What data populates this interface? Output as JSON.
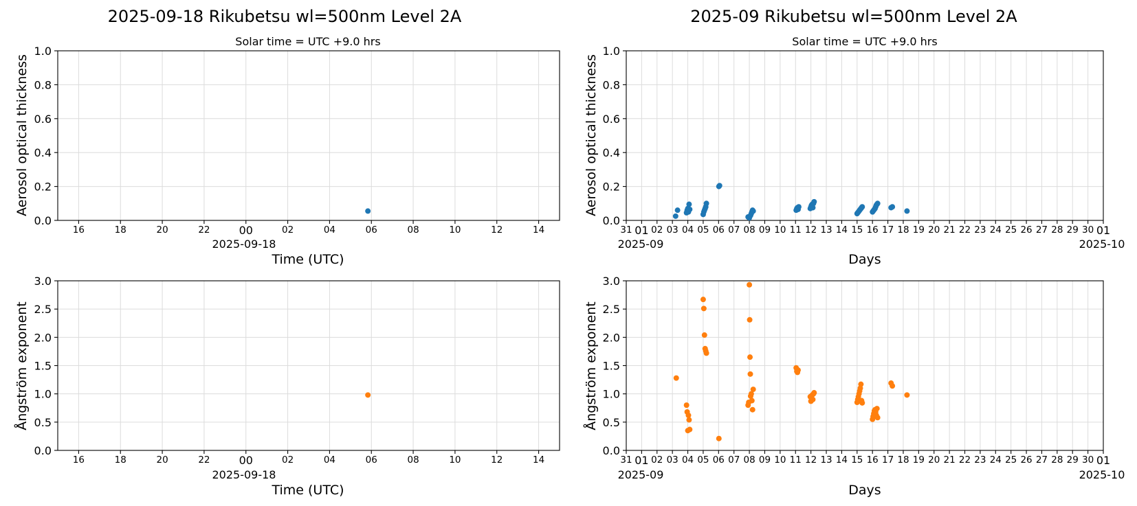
{
  "colors": {
    "aot": "#1f77b4",
    "angstrom": "#ff7f0e",
    "grid": "#dcdcdc"
  },
  "panels": {
    "daily_title": "2025-09-18  Rikubetsu  wl=500nm  Level 2A",
    "monthly_title": "2025-09  Rikubetsu  wl=500nm  Level 2A",
    "solar_time_note": "Solar time = UTC +9.0 hrs",
    "aot_ylabel": "Aerosol optical thickness",
    "angstrom_ylabel": "Ångström exponent",
    "daily_xlabel": "Time (UTC)",
    "monthly_xlabel": "Days",
    "daily_date_label": "2025-09-18",
    "monthly_start_label": "2025-09",
    "monthly_end_label": "2025-10"
  },
  "chart_data": [
    {
      "type": "scatter",
      "id": "daily-aot",
      "title": "Solar time = UTC +9.0 hrs",
      "xlabel": "Time (UTC)",
      "ylabel": "Aerosol optical thickness",
      "xlim": [
        "2025-09-17T15:00",
        "2025-09-18T15:00"
      ],
      "ylim": [
        0,
        1.0
      ],
      "yticks": [
        "0.0",
        "0.2",
        "0.4",
        "0.6",
        "0.8",
        "1.0"
      ],
      "xticks": [
        "16",
        "18",
        "20",
        "22",
        "00",
        "02",
        "04",
        "06",
        "08",
        "10",
        "12",
        "14"
      ],
      "grid": true,
      "series": [
        {
          "color": "#1f77b4",
          "points": [
            [
              "2025-09-18T05:50",
              0.055
            ]
          ]
        }
      ]
    },
    {
      "type": "scatter",
      "id": "monthly-aot",
      "title": "Solar time = UTC +9.0 hrs",
      "xlabel": "Days",
      "ylabel": "Aerosol optical thickness",
      "xlim": [
        "2025-08-31",
        "2025-10-01"
      ],
      "ylim": [
        0,
        1.0
      ],
      "yticks": [
        "0.0",
        "0.2",
        "0.4",
        "0.6",
        "0.8",
        "1.0"
      ],
      "xticks": [
        "31",
        "01",
        "02",
        "03",
        "04",
        "05",
        "06",
        "07",
        "08",
        "09",
        "10",
        "11",
        "12",
        "13",
        "14",
        "15",
        "16",
        "17",
        "18",
        "19",
        "20",
        "21",
        "22",
        "23",
        "24",
        "25",
        "26",
        "27",
        "28",
        "29",
        "30",
        "01"
      ],
      "grid": true,
      "series": [
        {
          "color": "#1f77b4",
          "points": [
            [
              "2025-09-03T05:00",
              0.025
            ],
            [
              "2025-09-03T08:00",
              0.06
            ],
            [
              "2025-09-03T22:00",
              0.045
            ],
            [
              "2025-09-03T23:00",
              0.06
            ],
            [
              "2025-09-04T00:00",
              0.07
            ],
            [
              "2025-09-04T01:00",
              0.05
            ],
            [
              "2025-09-04T02:00",
              0.095
            ],
            [
              "2025-09-04T03:00",
              0.065
            ],
            [
              "2025-09-05T00:00",
              0.035
            ],
            [
              "2025-09-05T01:00",
              0.05
            ],
            [
              "2025-09-05T02:00",
              0.06
            ],
            [
              "2025-09-05T03:00",
              0.07
            ],
            [
              "2025-09-05T04:00",
              0.08
            ],
            [
              "2025-09-05T05:00",
              0.1
            ],
            [
              "2025-09-06T00:30",
              0.2
            ],
            [
              "2025-09-06T01:30",
              0.205
            ],
            [
              "2025-09-07T22:00",
              0.02
            ],
            [
              "2025-09-07T23:00",
              0.018
            ],
            [
              "2025-09-08T00:00",
              0.015
            ],
            [
              "2025-09-08T01:00",
              0.025
            ],
            [
              "2025-09-08T02:00",
              0.03
            ],
            [
              "2025-09-08T03:00",
              0.04
            ],
            [
              "2025-09-08T04:00",
              0.05
            ],
            [
              "2025-09-08T05:00",
              0.06
            ],
            [
              "2025-09-08T06:00",
              0.055
            ],
            [
              "2025-09-11T01:00",
              0.06
            ],
            [
              "2025-09-11T02:00",
              0.07
            ],
            [
              "2025-09-11T03:00",
              0.075
            ],
            [
              "2025-09-11T04:00",
              0.065
            ],
            [
              "2025-09-11T05:00",
              0.08
            ],
            [
              "2025-09-11T23:00",
              0.07
            ],
            [
              "2025-09-12T00:00",
              0.08
            ],
            [
              "2025-09-12T01:00",
              0.09
            ],
            [
              "2025-09-12T02:00",
              0.095
            ],
            [
              "2025-09-12T03:00",
              0.075
            ],
            [
              "2025-09-12T04:00",
              0.1
            ],
            [
              "2025-09-12T05:00",
              0.11
            ],
            [
              "2025-09-15T00:00",
              0.04
            ],
            [
              "2025-09-15T01:00",
              0.045
            ],
            [
              "2025-09-15T02:00",
              0.05
            ],
            [
              "2025-09-15T03:00",
              0.055
            ],
            [
              "2025-09-15T04:00",
              0.06
            ],
            [
              "2025-09-15T05:00",
              0.065
            ],
            [
              "2025-09-15T06:00",
              0.07
            ],
            [
              "2025-09-15T07:00",
              0.075
            ],
            [
              "2025-09-15T08:00",
              0.08
            ],
            [
              "2025-09-16T00:00",
              0.05
            ],
            [
              "2025-09-16T01:00",
              0.055
            ],
            [
              "2025-09-16T02:00",
              0.06
            ],
            [
              "2025-09-16T03:00",
              0.065
            ],
            [
              "2025-09-16T04:00",
              0.07
            ],
            [
              "2025-09-16T05:00",
              0.08
            ],
            [
              "2025-09-16T06:00",
              0.09
            ],
            [
              "2025-09-16T07:00",
              0.095
            ],
            [
              "2025-09-16T08:00",
              0.1
            ],
            [
              "2025-09-17T05:00",
              0.075
            ],
            [
              "2025-09-17T07:00",
              0.08
            ],
            [
              "2025-09-18T05:50",
              0.055
            ]
          ]
        }
      ]
    },
    {
      "type": "scatter",
      "id": "daily-angstrom",
      "xlabel": "Time (UTC)",
      "ylabel": "Ångström exponent",
      "xlim": [
        "2025-09-17T15:00",
        "2025-09-18T15:00"
      ],
      "ylim": [
        0,
        3.0
      ],
      "yticks": [
        "0.0",
        "0.5",
        "1.0",
        "1.5",
        "2.0",
        "2.5",
        "3.0"
      ],
      "xticks": [
        "16",
        "18",
        "20",
        "22",
        "00",
        "02",
        "04",
        "06",
        "08",
        "10",
        "12",
        "14"
      ],
      "grid": true,
      "series": [
        {
          "color": "#ff7f0e",
          "points": [
            [
              "2025-09-18T05:50",
              0.98
            ]
          ]
        }
      ]
    },
    {
      "type": "scatter",
      "id": "monthly-angstrom",
      "xlabel": "Days",
      "ylabel": "Ångström exponent",
      "xlim": [
        "2025-08-31",
        "2025-10-01"
      ],
      "ylim": [
        0,
        3.0
      ],
      "yticks": [
        "0.0",
        "0.5",
        "1.0",
        "1.5",
        "2.0",
        "2.5",
        "3.0"
      ],
      "xticks": [
        "31",
        "01",
        "02",
        "03",
        "04",
        "05",
        "06",
        "07",
        "08",
        "09",
        "10",
        "11",
        "12",
        "13",
        "14",
        "15",
        "16",
        "17",
        "18",
        "19",
        "20",
        "21",
        "22",
        "23",
        "24",
        "25",
        "26",
        "27",
        "28",
        "29",
        "30",
        "01"
      ],
      "grid": true,
      "series": [
        {
          "color": "#ff7f0e",
          "points": [
            [
              "2025-09-03T06:00",
              1.28
            ],
            [
              "2025-09-03T22:00",
              0.8
            ],
            [
              "2025-09-03T23:00",
              0.68
            ],
            [
              "2025-09-04T00:00",
              0.35
            ],
            [
              "2025-09-04T01:00",
              0.62
            ],
            [
              "2025-09-04T02:00",
              0.54
            ],
            [
              "2025-09-04T03:00",
              0.37
            ],
            [
              "2025-09-05T00:00",
              2.67
            ],
            [
              "2025-09-05T01:00",
              2.51
            ],
            [
              "2025-09-05T02:00",
              2.04
            ],
            [
              "2025-09-05T03:00",
              1.8
            ],
            [
              "2025-09-05T04:00",
              1.76
            ],
            [
              "2025-09-05T05:00",
              1.72
            ],
            [
              "2025-09-06T00:30",
              0.21
            ],
            [
              "2025-09-07T22:00",
              0.8
            ],
            [
              "2025-09-07T23:00",
              0.85
            ],
            [
              "2025-09-08T00:00",
              2.93
            ],
            [
              "2025-09-08T00:30",
              2.31
            ],
            [
              "2025-09-08T01:00",
              1.65
            ],
            [
              "2025-09-08T01:30",
              1.35
            ],
            [
              "2025-09-08T02:00",
              0.96
            ],
            [
              "2025-09-08T03:00",
              1.0
            ],
            [
              "2025-09-08T04:00",
              0.88
            ],
            [
              "2025-09-08T05:00",
              0.72
            ],
            [
              "2025-09-08T06:00",
              1.08
            ],
            [
              "2025-09-11T01:00",
              1.46
            ],
            [
              "2025-09-11T02:00",
              1.4
            ],
            [
              "2025-09-11T03:00",
              1.38
            ],
            [
              "2025-09-11T04:00",
              1.42
            ],
            [
              "2025-09-11T23:00",
              0.95
            ],
            [
              "2025-09-12T00:00",
              0.87
            ],
            [
              "2025-09-12T01:00",
              0.92
            ],
            [
              "2025-09-12T02:00",
              0.98
            ],
            [
              "2025-09-12T03:00",
              0.9
            ],
            [
              "2025-09-12T04:00",
              1.0
            ],
            [
              "2025-09-12T05:00",
              1.02
            ],
            [
              "2025-09-15T00:00",
              0.85
            ],
            [
              "2025-09-15T01:00",
              0.9
            ],
            [
              "2025-09-15T02:00",
              0.95
            ],
            [
              "2025-09-15T03:00",
              1.0
            ],
            [
              "2025-09-15T04:00",
              1.05
            ],
            [
              "2025-09-15T05:00",
              1.1
            ],
            [
              "2025-09-15T06:00",
              1.17
            ],
            [
              "2025-09-15T07:00",
              0.88
            ],
            [
              "2025-09-15T08:00",
              0.84
            ],
            [
              "2025-09-16T00:00",
              0.55
            ],
            [
              "2025-09-16T01:00",
              0.6
            ],
            [
              "2025-09-16T02:00",
              0.65
            ],
            [
              "2025-09-16T03:00",
              0.7
            ],
            [
              "2025-09-16T04:00",
              0.72
            ],
            [
              "2025-09-16T05:00",
              0.68
            ],
            [
              "2025-09-16T06:00",
              0.62
            ],
            [
              "2025-09-16T07:00",
              0.74
            ],
            [
              "2025-09-16T08:00",
              0.58
            ],
            [
              "2025-09-17T05:00",
              1.19
            ],
            [
              "2025-09-17T07:00",
              1.14
            ],
            [
              "2025-09-18T05:50",
              0.98
            ]
          ]
        }
      ]
    }
  ]
}
